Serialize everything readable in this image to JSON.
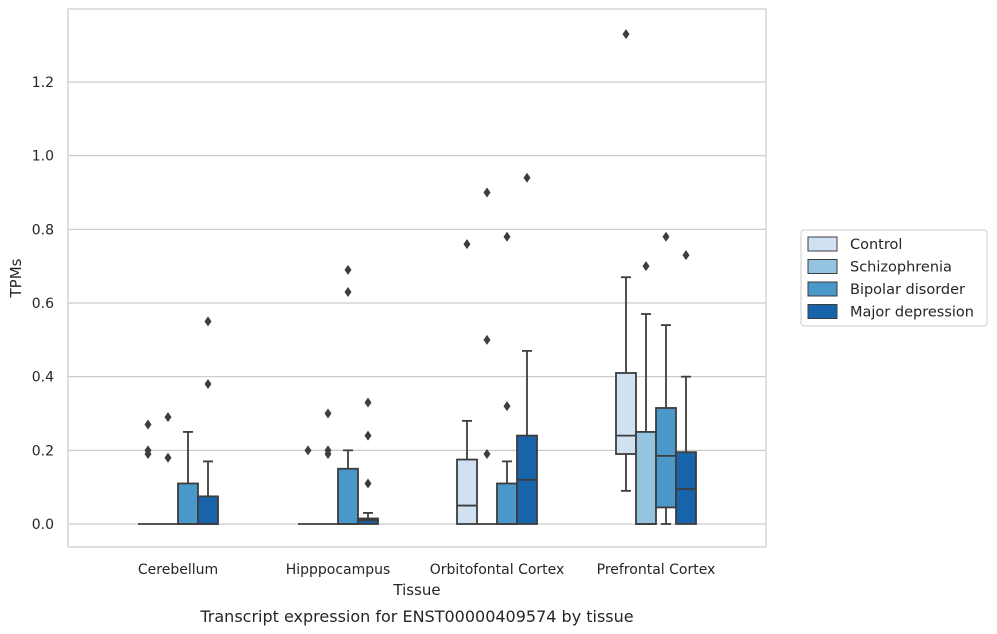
{
  "caption": "Transcript expression for ENST00000409574 by tissue",
  "chart_data": {
    "type": "boxplot",
    "title": "",
    "xlabel": "Tissue",
    "ylabel": "TPMs",
    "ylim": [
      -0.065,
      1.405
    ],
    "yticks": [
      0.0,
      0.2,
      0.4,
      0.6,
      0.8,
      1.0,
      1.2
    ],
    "ytick_labels": [
      "0.0",
      "0.2",
      "0.4",
      "0.6",
      "0.8",
      "1.0",
      "1.2"
    ],
    "grid": "horizontal",
    "legend_position": "right",
    "categories": [
      "Cerebellum",
      "Hipppocampus",
      "Orbitofontal Cortex",
      "Prefrontal Cortex"
    ],
    "series": [
      {
        "name": "Control",
        "color": "#d0e1f2",
        "boxes": [
          {
            "whislo": 0,
            "q1": 0,
            "med": 0,
            "q3": 0,
            "whishi": 0,
            "fliers": [
              0.19,
              0.2,
              0.27
            ]
          },
          {
            "whislo": 0,
            "q1": 0,
            "med": 0,
            "q3": 0,
            "whishi": 0,
            "fliers": [
              0.2
            ]
          },
          {
            "whislo": 0,
            "q1": 0,
            "med": 0.05,
            "q3": 0.175,
            "whishi": 0.28,
            "fliers": [
              0.76
            ]
          },
          {
            "whislo": 0.09,
            "q1": 0.19,
            "med": 0.24,
            "q3": 0.41,
            "whishi": 0.67,
            "fliers": [
              1.33
            ]
          }
        ]
      },
      {
        "name": "Schizophrenia",
        "color": "#94c4df",
        "boxes": [
          {
            "whislo": 0,
            "q1": 0,
            "med": 0,
            "q3": 0,
            "whishi": 0,
            "fliers": [
              0.18,
              0.29
            ]
          },
          {
            "whislo": 0,
            "q1": 0,
            "med": 0,
            "q3": 0,
            "whishi": 0,
            "fliers": [
              0.19,
              0.2,
              0.3
            ]
          },
          {
            "whislo": 0,
            "q1": 0,
            "med": 0,
            "q3": 0,
            "whishi": 0,
            "fliers": [
              0.19,
              0.5,
              0.9
            ]
          },
          {
            "whislo": 0,
            "q1": 0,
            "med": 0,
            "q3": 0.25,
            "whishi": 0.57,
            "fliers": [
              0.7
            ]
          }
        ]
      },
      {
        "name": "Bipolar disorder",
        "color": "#4a98c9",
        "boxes": [
          {
            "whislo": 0,
            "q1": 0,
            "med": 0,
            "q3": 0.11,
            "whishi": 0.25,
            "fliers": []
          },
          {
            "whislo": 0,
            "q1": 0,
            "med": 0,
            "q3": 0.15,
            "whishi": 0.2,
            "fliers": [
              0.63,
              0.69
            ]
          },
          {
            "whislo": 0,
            "q1": 0,
            "med": 0,
            "q3": 0.11,
            "whishi": 0.17,
            "fliers": [
              0.32,
              0.78
            ]
          },
          {
            "whislo": 0,
            "q1": 0.045,
            "med": 0.185,
            "q3": 0.315,
            "whishi": 0.54,
            "fliers": [
              0.78
            ]
          }
        ]
      },
      {
        "name": "Major depression",
        "color": "#1764ab",
        "boxes": [
          {
            "whislo": 0,
            "q1": 0,
            "med": 0,
            "q3": 0.075,
            "whishi": 0.17,
            "fliers": [
              0.38,
              0.55
            ]
          },
          {
            "whislo": 0,
            "q1": 0,
            "med": 0.01,
            "q3": 0.015,
            "whishi": 0.03,
            "fliers": [
              0.11,
              0.24,
              0.33
            ]
          },
          {
            "whislo": 0,
            "q1": 0,
            "med": 0.12,
            "q3": 0.24,
            "whishi": 0.47,
            "fliers": [
              0.94
            ]
          },
          {
            "whislo": 0,
            "q1": 0,
            "med": 0.095,
            "q3": 0.195,
            "whishi": 0.4,
            "fliers": [
              0.73
            ]
          }
        ]
      }
    ]
  }
}
